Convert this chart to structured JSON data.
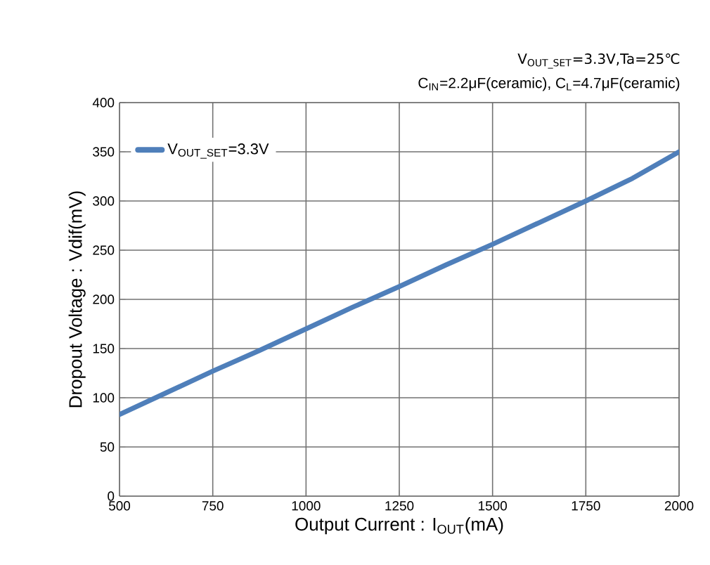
{
  "chart_data": {
    "type": "line",
    "subtitle": "V$_{OUT_SET}$=3.3V,Ta=25℃",
    "annotations": [
      "C$_{IN}$=2.2μF(ceramic), C$_{L}$=4.7μF(ceramic)"
    ],
    "xlabel": "Output Current : I$_{OUT}$(mA)",
    "ylabel": "Dropout Voltage : Vdif(mV)",
    "x": [
      500,
      625,
      750,
      875,
      1000,
      1125,
      1250,
      1375,
      1500,
      1625,
      1750,
      1875,
      2000
    ],
    "series": [
      {
        "name": "V$_{OUT_SET}$=3.3V",
        "color": "#4f7fba",
        "values": [
          83,
          105,
          127,
          148,
          170,
          192,
          213,
          235,
          256,
          278,
          300,
          323,
          350
        ]
      }
    ],
    "xlim": [
      500,
      2000
    ],
    "xticks": [
      500,
      750,
      1000,
      1250,
      1500,
      1750,
      2000
    ],
    "ylim": [
      0,
      400
    ],
    "yticks": [
      0,
      50,
      100,
      150,
      200,
      250,
      300,
      350,
      400
    ],
    "grid": true,
    "legend": "top left",
    "marker": "none",
    "line_style": "solid"
  }
}
